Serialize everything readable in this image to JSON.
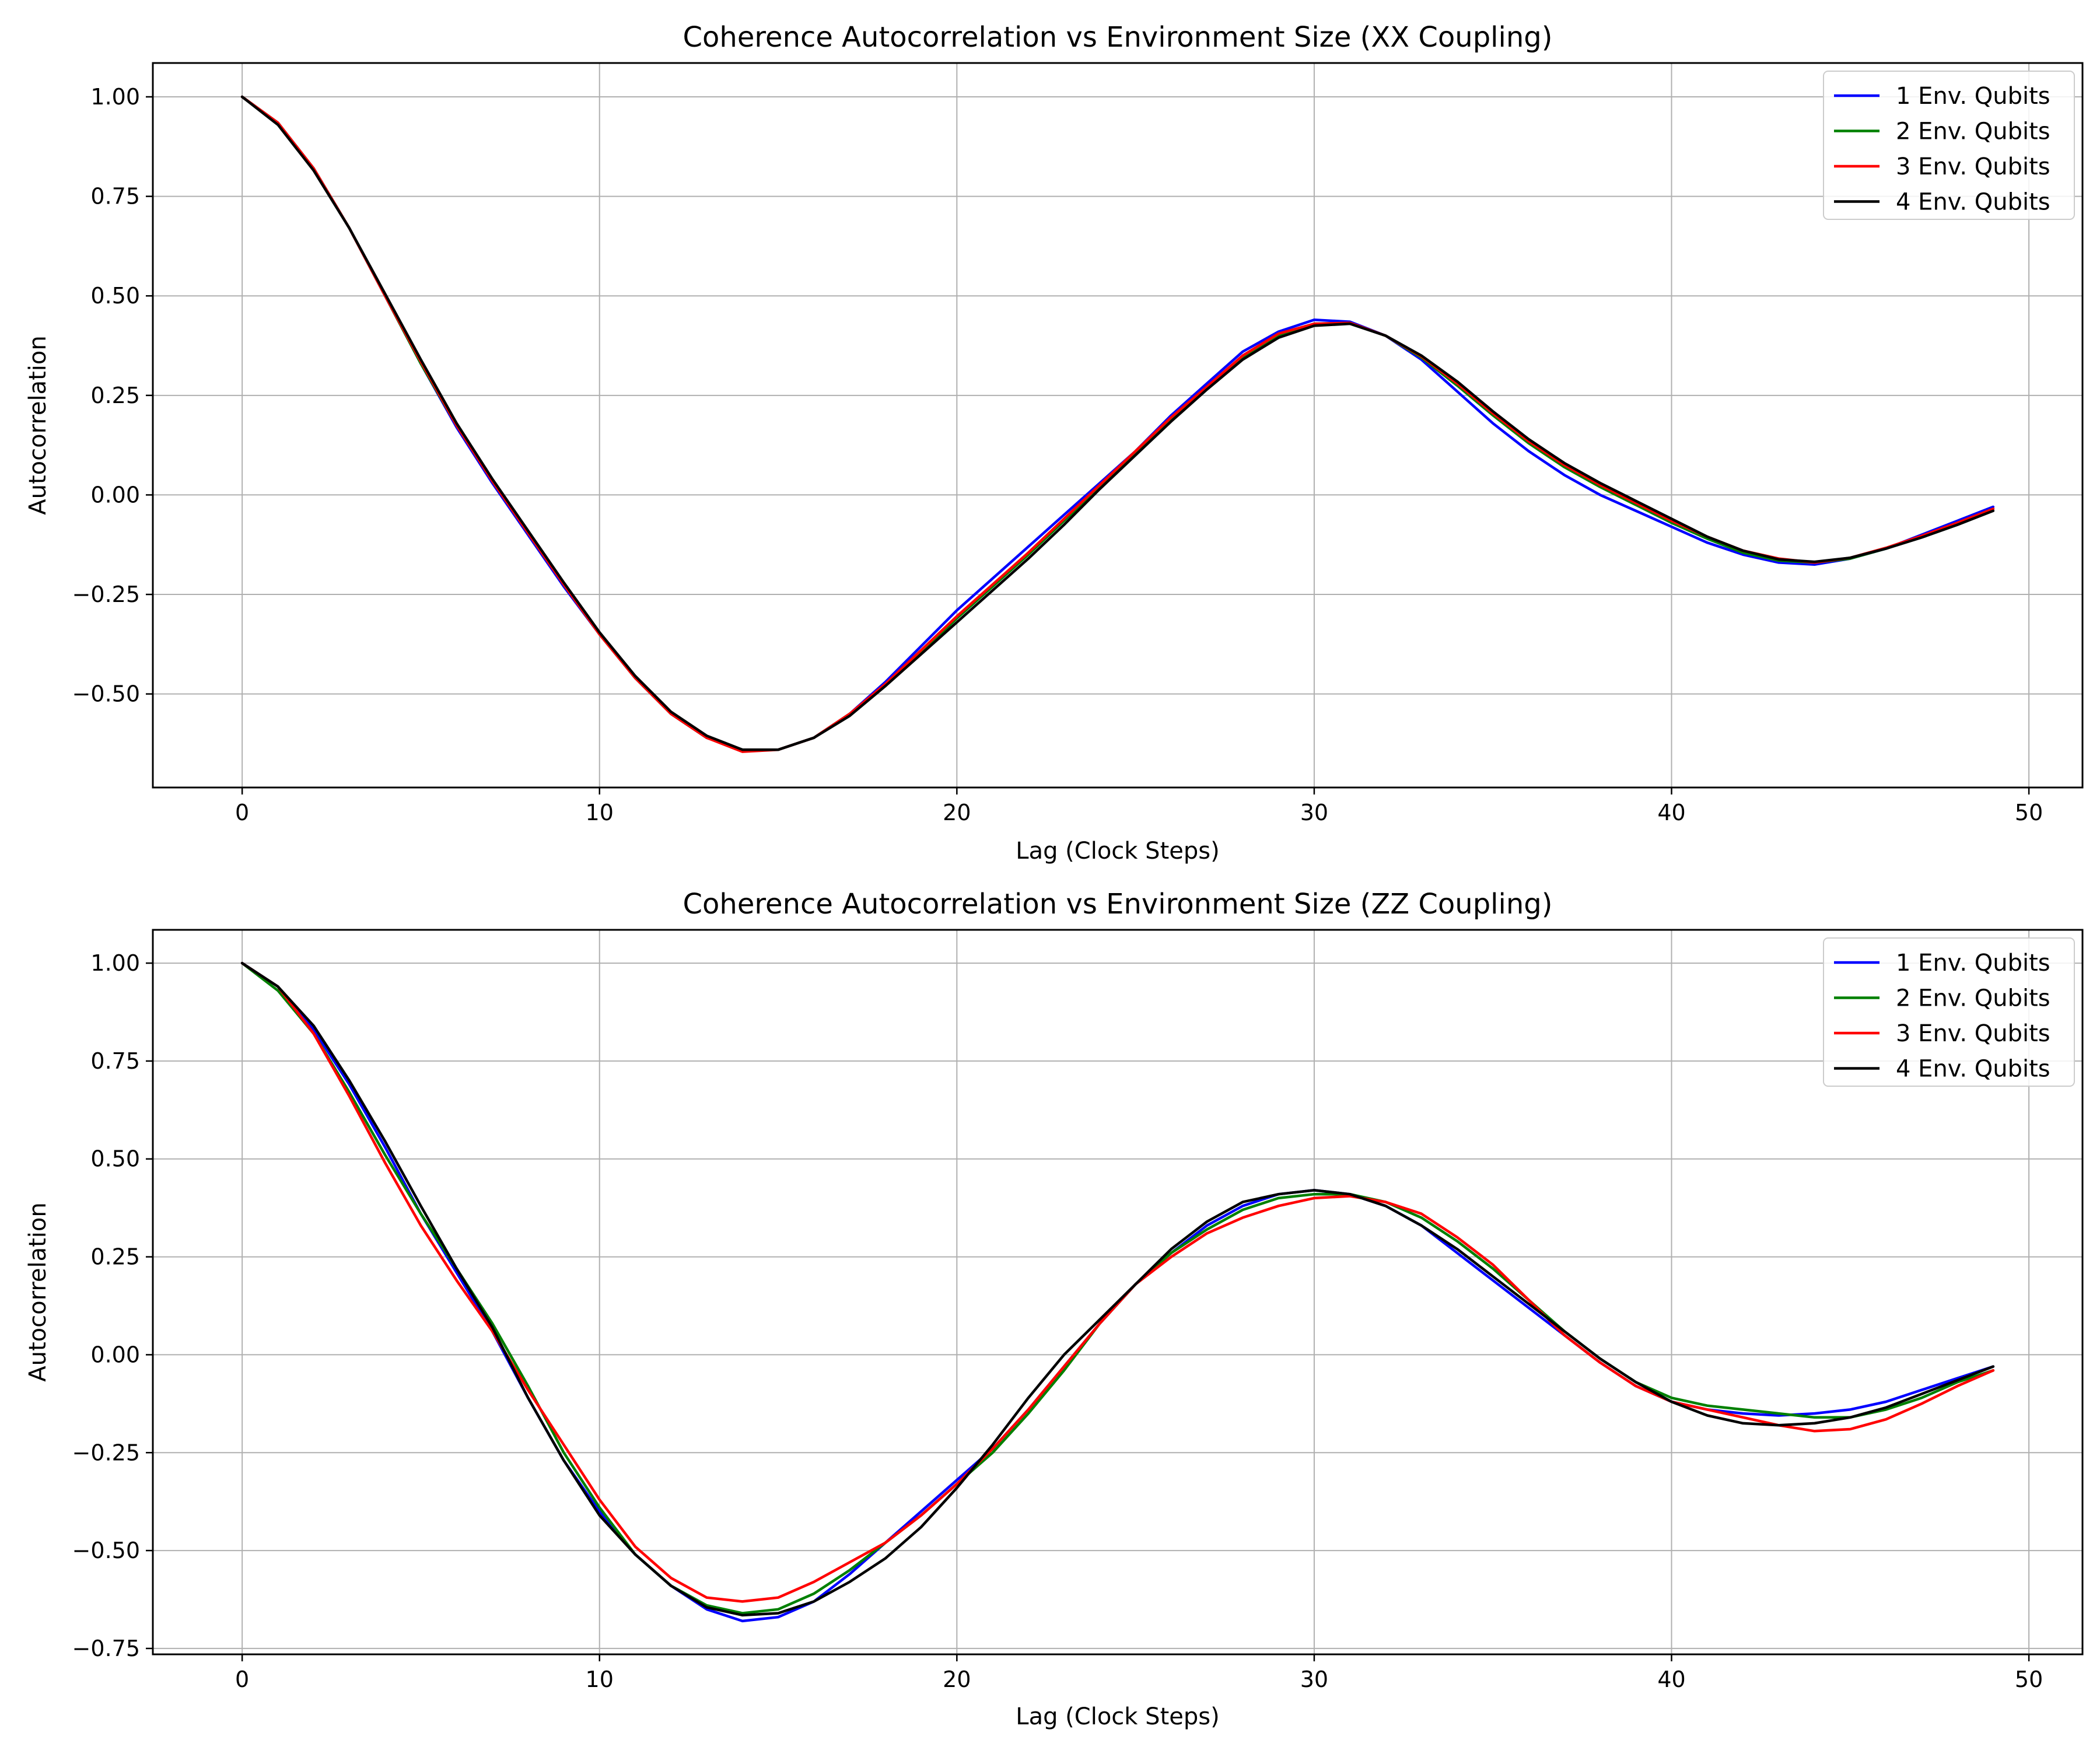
{
  "chart_data": [
    {
      "type": "line",
      "title": "Coherence Autocorrelation vs Environment Size (XX Coupling)",
      "xlabel": "Lag (Clock Steps)",
      "ylabel": "Autocorrelation",
      "xlim": [
        -2.5,
        51.5
      ],
      "ylim": [
        -0.735,
        1.085
      ],
      "xticks": [
        0,
        10,
        20,
        30,
        40,
        50
      ],
      "yticks": [
        1.0,
        0.75,
        0.5,
        0.25,
        0.0,
        -0.25,
        -0.5
      ],
      "ytick_labels": [
        "1.00",
        "0.75",
        "0.50",
        "0.25",
        "0.00",
        "−0.25",
        "−0.50"
      ],
      "grid": true,
      "legend": "top-right",
      "x": [
        0,
        1,
        2,
        3,
        4,
        5,
        6,
        7,
        8,
        9,
        10,
        11,
        12,
        13,
        14,
        15,
        16,
        17,
        18,
        19,
        20,
        21,
        22,
        23,
        24,
        25,
        26,
        27,
        28,
        29,
        30,
        31,
        32,
        33,
        34,
        35,
        36,
        37,
        38,
        39,
        40,
        41,
        42,
        43,
        44,
        45,
        46,
        47,
        48,
        49
      ],
      "series": [
        {
          "name": "1 Env. Qubits",
          "color": "#0000ff",
          "values": [
            1.0,
            0.935,
            0.82,
            0.67,
            0.5,
            0.33,
            0.17,
            0.03,
            -0.1,
            -0.23,
            -0.35,
            -0.46,
            -0.55,
            -0.61,
            -0.64,
            -0.64,
            -0.61,
            -0.55,
            -0.47,
            -0.38,
            -0.29,
            -0.21,
            -0.13,
            -0.05,
            0.03,
            0.11,
            0.2,
            0.28,
            0.36,
            0.41,
            0.44,
            0.435,
            0.4,
            0.34,
            0.26,
            0.18,
            0.11,
            0.05,
            0.0,
            -0.04,
            -0.08,
            -0.12,
            -0.15,
            -0.17,
            -0.175,
            -0.16,
            -0.135,
            -0.1,
            -0.065,
            -0.03
          ]
        },
        {
          "name": "2 Env. Qubits",
          "color": "#008000",
          "values": [
            1.0,
            0.935,
            0.82,
            0.67,
            0.5,
            0.33,
            0.175,
            0.035,
            -0.095,
            -0.225,
            -0.35,
            -0.46,
            -0.55,
            -0.61,
            -0.64,
            -0.64,
            -0.61,
            -0.55,
            -0.48,
            -0.395,
            -0.31,
            -0.23,
            -0.15,
            -0.065,
            0.02,
            0.105,
            0.19,
            0.27,
            0.345,
            0.4,
            0.43,
            0.432,
            0.4,
            0.345,
            0.275,
            0.2,
            0.13,
            0.07,
            0.02,
            -0.025,
            -0.07,
            -0.11,
            -0.145,
            -0.165,
            -0.17,
            -0.16,
            -0.135,
            -0.105,
            -0.07,
            -0.035
          ]
        },
        {
          "name": "3 Env. Qubits",
          "color": "#ff0000",
          "values": [
            1.0,
            0.935,
            0.82,
            0.67,
            0.5,
            0.335,
            0.175,
            0.035,
            -0.095,
            -0.225,
            -0.35,
            -0.46,
            -0.55,
            -0.61,
            -0.645,
            -0.64,
            -0.61,
            -0.55,
            -0.475,
            -0.39,
            -0.305,
            -0.225,
            -0.145,
            -0.06,
            0.025,
            0.11,
            0.195,
            0.272,
            0.35,
            0.405,
            0.43,
            0.432,
            0.4,
            0.348,
            0.28,
            0.205,
            0.135,
            0.075,
            0.025,
            -0.02,
            -0.065,
            -0.105,
            -0.14,
            -0.16,
            -0.17,
            -0.158,
            -0.133,
            -0.103,
            -0.07,
            -0.035
          ]
        },
        {
          "name": "4 Env. Qubits",
          "color": "#000000",
          "values": [
            1.0,
            0.93,
            0.815,
            0.67,
            0.505,
            0.34,
            0.18,
            0.04,
            -0.09,
            -0.22,
            -0.345,
            -0.455,
            -0.545,
            -0.605,
            -0.64,
            -0.64,
            -0.61,
            -0.555,
            -0.48,
            -0.4,
            -0.32,
            -0.24,
            -0.16,
            -0.075,
            0.015,
            0.1,
            0.185,
            0.265,
            0.34,
            0.395,
            0.425,
            0.43,
            0.4,
            0.35,
            0.285,
            0.21,
            0.14,
            0.08,
            0.03,
            -0.015,
            -0.06,
            -0.105,
            -0.14,
            -0.162,
            -0.168,
            -0.158,
            -0.135,
            -0.107,
            -0.075,
            -0.04
          ]
        }
      ]
    },
    {
      "type": "line",
      "title": "Coherence Autocorrelation vs Environment Size (ZZ Coupling)",
      "xlabel": "Lag (Clock Steps)",
      "ylabel": "Autocorrelation",
      "xlim": [
        -2.5,
        51.5
      ],
      "ylim": [
        -0.765,
        1.085
      ],
      "xticks": [
        0,
        10,
        20,
        30,
        40,
        50
      ],
      "yticks": [
        1.0,
        0.75,
        0.5,
        0.25,
        0.0,
        -0.25,
        -0.5,
        -0.75
      ],
      "ytick_labels": [
        "1.00",
        "0.75",
        "0.50",
        "0.25",
        "0.00",
        "−0.25",
        "−0.50",
        "−0.75"
      ],
      "grid": true,
      "legend": "top-right",
      "x": [
        0,
        1,
        2,
        3,
        4,
        5,
        6,
        7,
        8,
        9,
        10,
        11,
        12,
        13,
        14,
        15,
        16,
        17,
        18,
        19,
        20,
        21,
        22,
        23,
        24,
        25,
        26,
        27,
        28,
        29,
        30,
        31,
        32,
        33,
        34,
        35,
        36,
        37,
        38,
        39,
        40,
        41,
        42,
        43,
        44,
        45,
        46,
        47,
        48,
        49
      ],
      "series": [
        {
          "name": "1 Env. Qubits",
          "color": "#0000ff",
          "values": [
            1.0,
            0.94,
            0.83,
            0.69,
            0.53,
            0.36,
            0.21,
            0.06,
            -0.11,
            -0.27,
            -0.4,
            -0.51,
            -0.59,
            -0.65,
            -0.68,
            -0.67,
            -0.63,
            -0.56,
            -0.48,
            -0.4,
            -0.32,
            -0.24,
            -0.14,
            -0.03,
            0.08,
            0.18,
            0.26,
            0.33,
            0.38,
            0.41,
            0.42,
            0.41,
            0.38,
            0.33,
            0.26,
            0.19,
            0.12,
            0.05,
            -0.02,
            -0.08,
            -0.12,
            -0.14,
            -0.15,
            -0.155,
            -0.15,
            -0.14,
            -0.12,
            -0.09,
            -0.06,
            -0.03
          ]
        },
        {
          "name": "2 Env. Qubits",
          "color": "#008000",
          "values": [
            1.0,
            0.93,
            0.82,
            0.67,
            0.51,
            0.36,
            0.22,
            0.08,
            -0.08,
            -0.25,
            -0.39,
            -0.51,
            -0.59,
            -0.64,
            -0.66,
            -0.65,
            -0.61,
            -0.55,
            -0.48,
            -0.41,
            -0.33,
            -0.25,
            -0.15,
            -0.04,
            0.08,
            0.18,
            0.26,
            0.32,
            0.37,
            0.4,
            0.41,
            0.41,
            0.39,
            0.35,
            0.29,
            0.22,
            0.14,
            0.06,
            -0.01,
            -0.07,
            -0.11,
            -0.13,
            -0.14,
            -0.15,
            -0.16,
            -0.16,
            -0.14,
            -0.11,
            -0.07,
            -0.04
          ]
        },
        {
          "name": "3 Env. Qubits",
          "color": "#ff0000",
          "values": [
            1.0,
            0.94,
            0.82,
            0.66,
            0.49,
            0.33,
            0.19,
            0.06,
            -0.09,
            -0.23,
            -0.37,
            -0.49,
            -0.57,
            -0.62,
            -0.63,
            -0.62,
            -0.58,
            -0.53,
            -0.48,
            -0.41,
            -0.33,
            -0.24,
            -0.14,
            -0.03,
            0.08,
            0.18,
            0.25,
            0.31,
            0.35,
            0.38,
            0.4,
            0.405,
            0.39,
            0.36,
            0.3,
            0.23,
            0.14,
            0.05,
            -0.02,
            -0.08,
            -0.12,
            -0.14,
            -0.16,
            -0.18,
            -0.195,
            -0.19,
            -0.165,
            -0.125,
            -0.08,
            -0.04
          ]
        },
        {
          "name": "4 Env. Qubits",
          "color": "#000000",
          "values": [
            1.0,
            0.94,
            0.84,
            0.7,
            0.545,
            0.38,
            0.22,
            0.07,
            -0.11,
            -0.27,
            -0.41,
            -0.51,
            -0.59,
            -0.645,
            -0.665,
            -0.66,
            -0.63,
            -0.58,
            -0.52,
            -0.44,
            -0.34,
            -0.23,
            -0.11,
            0.0,
            0.09,
            0.18,
            0.27,
            0.34,
            0.39,
            0.41,
            0.42,
            0.41,
            0.38,
            0.33,
            0.27,
            0.2,
            0.13,
            0.06,
            -0.01,
            -0.07,
            -0.12,
            -0.155,
            -0.175,
            -0.18,
            -0.175,
            -0.16,
            -0.135,
            -0.1,
            -0.065,
            -0.03
          ]
        }
      ]
    }
  ]
}
